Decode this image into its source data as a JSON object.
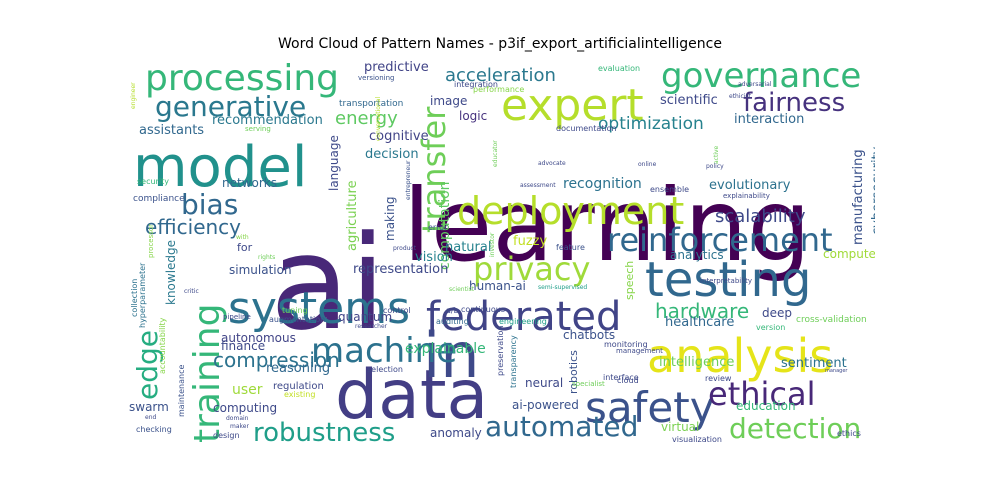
{
  "chart_data": {
    "type": "wordcloud",
    "title": "Word Cloud of Pattern Names - p3if_export_artificialintelligence",
    "background": "#ffffff",
    "colormap": "viridis",
    "words": [
      {
        "text": "learning",
        "weight": 1.0,
        "color": "#440154"
      },
      {
        "text": "ai",
        "weight": 0.97,
        "color": "#482878"
      },
      {
        "text": "data",
        "weight": 0.68,
        "color": "#433e85"
      },
      {
        "text": "in",
        "weight": 0.62,
        "color": "#3e4989"
      },
      {
        "text": "model",
        "weight": 0.58,
        "color": "#21918c"
      },
      {
        "text": "testing",
        "weight": 0.5,
        "color": "#31688e"
      },
      {
        "text": "analysis",
        "weight": 0.5,
        "color": "#e5e419"
      },
      {
        "text": "systems",
        "weight": 0.48,
        "color": "#2c728e"
      },
      {
        "text": "expert",
        "weight": 0.46,
        "color": "#b5de2b"
      },
      {
        "text": "safety",
        "weight": 0.45,
        "color": "#3b528b"
      },
      {
        "text": "federated",
        "weight": 0.43,
        "color": "#414487"
      },
      {
        "text": "deployment",
        "weight": 0.42,
        "color": "#b5de2b"
      },
      {
        "text": "processing",
        "weight": 0.41,
        "color": "#35b779"
      },
      {
        "text": "governance",
        "weight": 0.4,
        "color": "#35b779"
      },
      {
        "text": "training",
        "weight": 0.4,
        "color": "#35b779"
      },
      {
        "text": "machine",
        "weight": 0.38,
        "color": "#2c728e"
      },
      {
        "text": "reinforcement",
        "weight": 0.37,
        "color": "#31688e"
      },
      {
        "text": "transfer",
        "weight": 0.36,
        "color": "#6ece58"
      },
      {
        "text": "ethical",
        "weight": 0.36,
        "color": "#482878"
      },
      {
        "text": "privacy",
        "weight": 0.35,
        "color": "#9fda3a"
      },
      {
        "text": "generative",
        "weight": 0.33,
        "color": "#2a788e"
      },
      {
        "text": "edge",
        "weight": 0.33,
        "color": "#26ad81"
      },
      {
        "text": "automated",
        "weight": 0.32,
        "color": "#31688e"
      },
      {
        "text": "detection",
        "weight": 0.31,
        "color": "#6ece58"
      },
      {
        "text": "robustness",
        "weight": 0.3,
        "color": "#1f9e89"
      },
      {
        "text": "fairness",
        "weight": 0.29,
        "color": "#46327e"
      },
      {
        "text": "bias",
        "weight": 0.29,
        "color": "#31688e"
      },
      {
        "text": "compression",
        "weight": 0.25,
        "color": "#2c728e"
      },
      {
        "text": "hardware",
        "weight": 0.24,
        "color": "#35b779"
      },
      {
        "text": "efficiency",
        "weight": 0.24,
        "color": "#31688e"
      },
      {
        "text": "acceleration",
        "weight": 0.23,
        "color": "#2a788e"
      },
      {
        "text": "scalability",
        "weight": 0.22,
        "color": "#3e4989"
      },
      {
        "text": "optimization",
        "weight": 0.21,
        "color": "#26828e"
      },
      {
        "text": "energy",
        "weight": 0.21,
        "color": "#5ec962"
      },
      {
        "text": "computation",
        "weight": 0.16,
        "color": "#5ec962"
      },
      {
        "text": "fuzzy",
        "weight": 0.16,
        "color": "#c2df23"
      },
      {
        "text": "robotics",
        "weight": 0.15,
        "color": "#3b528b"
      },
      {
        "text": "recognition",
        "weight": 0.17,
        "color": "#2c728e"
      },
      {
        "text": "explainable",
        "weight": 0.16,
        "color": "#35b779"
      },
      {
        "text": "natural",
        "weight": 0.15,
        "color": "#26828e"
      },
      {
        "text": "vision",
        "weight": 0.15,
        "color": "#26828e"
      },
      {
        "text": "knowledge",
        "weight": 0.15,
        "color": "#2a788e"
      },
      {
        "text": "representation",
        "weight": 0.15,
        "color": "#3e4989"
      },
      {
        "text": "evolutionary",
        "weight": 0.15,
        "color": "#2c728e"
      },
      {
        "text": "manufacturing",
        "weight": 0.15,
        "color": "#3b528b"
      },
      {
        "text": "cybersecurity",
        "weight": 0.14,
        "color": "#31688e"
      },
      {
        "text": "intelligence",
        "weight": 0.15,
        "color": "#6ece58"
      },
      {
        "text": "healthcare",
        "weight": 0.15,
        "color": "#31688e"
      },
      {
        "text": "sentiment",
        "weight": 0.15,
        "color": "#2c728e"
      },
      {
        "text": "agriculture",
        "weight": 0.14,
        "color": "#7ad151"
      },
      {
        "text": "language",
        "weight": 0.14,
        "color": "#3e4989"
      },
      {
        "text": "making",
        "weight": 0.14,
        "color": "#3b528b"
      },
      {
        "text": "decision",
        "weight": 0.14,
        "color": "#2a788e"
      },
      {
        "text": "cognitive",
        "weight": 0.14,
        "color": "#414487"
      },
      {
        "text": "recommendation",
        "weight": 0.13,
        "color": "#2a788e"
      },
      {
        "text": "assistants",
        "weight": 0.13,
        "color": "#31688e"
      },
      {
        "text": "scientific",
        "weight": 0.13,
        "color": "#3e4989"
      },
      {
        "text": "interaction",
        "weight": 0.13,
        "color": "#31688e"
      },
      {
        "text": "predictive",
        "weight": 0.13,
        "color": "#414487"
      },
      {
        "text": "logic",
        "weight": 0.12,
        "color": "#46327e"
      },
      {
        "text": "image",
        "weight": 0.11,
        "color": "#3e4989"
      },
      {
        "text": "networks",
        "weight": 0.12,
        "color": "#31688e"
      },
      {
        "text": "simulation",
        "weight": 0.12,
        "color": "#3b528b"
      },
      {
        "text": "autonomous",
        "weight": 0.12,
        "color": "#414487"
      },
      {
        "text": "finance",
        "weight": 0.12,
        "color": "#3e4989"
      },
      {
        "text": "reasoning",
        "weight": 0.13,
        "color": "#31688e"
      },
      {
        "text": "user",
        "weight": 0.14,
        "color": "#9fda3a"
      },
      {
        "text": "swarm",
        "weight": 0.13,
        "color": "#3b528b"
      },
      {
        "text": "computing",
        "weight": 0.12,
        "color": "#3e4989"
      },
      {
        "text": "quantum",
        "weight": 0.11,
        "color": "#414487"
      },
      {
        "text": "human-ai",
        "weight": 0.12,
        "color": "#3b528b"
      },
      {
        "text": "analytics",
        "weight": 0.12,
        "color": "#2c728e"
      },
      {
        "text": "computer",
        "weight": 0.12,
        "color": "#a0da39"
      },
      {
        "text": "deep",
        "weight": 0.12,
        "color": "#3e4989"
      },
      {
        "text": "discovery",
        "weight": 0.12,
        "color": "#2a788e"
      },
      {
        "text": "chatbots",
        "weight": 0.11,
        "color": "#3b528b"
      },
      {
        "text": "neural",
        "weight": 0.11,
        "color": "#3e4989"
      },
      {
        "text": "ai-powered",
        "weight": 0.11,
        "color": "#3b528b"
      },
      {
        "text": "anomaly",
        "weight": 0.11,
        "color": "#3e4989"
      },
      {
        "text": "virtual",
        "weight": 0.11,
        "color": "#7ad151"
      },
      {
        "text": "education",
        "weight": 0.11,
        "color": "#35b779"
      },
      {
        "text": "speech",
        "weight": 0.1,
        "color": "#86d549"
      },
      {
        "text": "for",
        "weight": 0.1,
        "color": "#3e4989"
      },
      {
        "text": "regulation",
        "weight": 0.09,
        "color": "#3e4989"
      },
      {
        "text": "compliance",
        "weight": 0.08,
        "color": "#3b528b"
      },
      {
        "text": "security",
        "weight": 0.07,
        "color": "#35b779"
      },
      {
        "text": "serving",
        "weight": 0.06,
        "color": "#6ece58"
      },
      {
        "text": "transportation",
        "weight": 0.08,
        "color": "#31688e"
      },
      {
        "text": "performance",
        "weight": 0.08,
        "color": "#86d549"
      },
      {
        "text": "integration",
        "weight": 0.08,
        "color": "#3e4989"
      },
      {
        "text": "versioning",
        "weight": 0.07,
        "color": "#3b528b"
      },
      {
        "text": "evaluation",
        "weight": 0.08,
        "color": "#35b779"
      },
      {
        "text": "documentation",
        "weight": 0.07,
        "color": "#3e4989"
      },
      {
        "text": "auditing",
        "weight": 0.07,
        "color": "#31688e"
      },
      {
        "text": "continuous",
        "weight": 0.07,
        "color": "#3e4989"
      },
      {
        "text": "error",
        "weight": 0.07,
        "color": "#3b528b"
      },
      {
        "text": "ensemble",
        "weight": 0.07,
        "color": "#3e4989"
      },
      {
        "text": "feature",
        "weight": 0.07,
        "color": "#3b528b"
      },
      {
        "text": "explainability",
        "weight": 0.07,
        "color": "#3e4989"
      },
      {
        "text": "interpretability",
        "weight": 0.06,
        "color": "#3e4989"
      },
      {
        "text": "cross-validation",
        "weight": 0.08,
        "color": "#6ece58"
      },
      {
        "text": "version",
        "weight": 0.07,
        "color": "#35b779"
      },
      {
        "text": "management",
        "weight": 0.06,
        "color": "#3e4989"
      },
      {
        "text": "monitoring",
        "weight": 0.07,
        "color": "#3e4989"
      },
      {
        "text": "preservation",
        "weight": 0.07,
        "color": "#3e4989"
      },
      {
        "text": "transparency",
        "weight": 0.07,
        "color": "#2c728e"
      },
      {
        "text": "engineering",
        "weight": 0.07,
        "color": "#1f9e89"
      },
      {
        "text": "semi-supervised",
        "weight": 0.06,
        "color": "#1f9e89"
      },
      {
        "text": "scientist",
        "weight": 0.06,
        "color": "#6ece58"
      },
      {
        "text": "a/b",
        "weight": 0.07,
        "color": "#3e4989"
      },
      {
        "text": "control",
        "weight": 0.07,
        "color": "#3e4989"
      },
      {
        "text": "tuning",
        "weight": 0.07,
        "color": "#6ece58"
      },
      {
        "text": "augmentation",
        "weight": 0.07,
        "color": "#3b528b"
      },
      {
        "text": "pipeline",
        "weight": 0.06,
        "color": "#3e4989"
      },
      {
        "text": "researcher",
        "weight": 0.06,
        "color": "#3e4989"
      },
      {
        "text": "critic",
        "weight": 0.06,
        "color": "#3e4989"
      },
      {
        "text": "selection",
        "weight": 0.07,
        "color": "#3e4989"
      },
      {
        "text": "existing",
        "weight": 0.07,
        "color": "#c2df23"
      },
      {
        "text": "interface",
        "weight": 0.07,
        "color": "#3e4989"
      },
      {
        "text": "cloud",
        "weight": 0.07,
        "color": "#3e4989"
      },
      {
        "text": "specialist",
        "weight": 0.06,
        "color": "#6ece58"
      },
      {
        "text": "review",
        "weight": 0.07,
        "color": "#3e4989"
      },
      {
        "text": "ethics",
        "weight": 0.07,
        "color": "#3e4989"
      },
      {
        "text": "algorithm",
        "weight": 0.07,
        "color": "#3b528b"
      },
      {
        "text": "visualization",
        "weight": 0.07,
        "color": "#3e4989"
      },
      {
        "text": "checking",
        "weight": 0.07,
        "color": "#3b528b"
      },
      {
        "text": "design",
        "weight": 0.07,
        "color": "#3e4989"
      },
      {
        "text": "maker",
        "weight": 0.06,
        "color": "#3e4989"
      },
      {
        "text": "domain",
        "weight": 0.06,
        "color": "#3e4989"
      },
      {
        "text": "end",
        "weight": 0.06,
        "color": "#3e4989"
      },
      {
        "text": "maintenance",
        "weight": 0.07,
        "color": "#3b528b"
      },
      {
        "text": "accountability",
        "weight": 0.07,
        "color": "#86d549"
      },
      {
        "text": "collection",
        "weight": 0.07,
        "color": "#2c728e"
      },
      {
        "text": "hyperparameter",
        "weight": 0.07,
        "color": "#2c728e"
      },
      {
        "text": "processor",
        "weight": 0.06,
        "color": "#86d549"
      },
      {
        "text": "engineer",
        "weight": 0.06,
        "color": "#b5de2b"
      },
      {
        "text": "with",
        "weight": 0.06,
        "color": "#86d549"
      },
      {
        "text": "rights",
        "weight": 0.06,
        "color": "#6ece58"
      },
      {
        "text": "product",
        "weight": 0.06,
        "color": "#3e4989"
      },
      {
        "text": "investor",
        "weight": 0.06,
        "color": "#6ece58"
      },
      {
        "text": "entrepreneur",
        "weight": 0.06,
        "color": "#3b528b"
      },
      {
        "text": "educator",
        "weight": 0.06,
        "color": "#6ece58"
      },
      {
        "text": "advocate",
        "weight": 0.06,
        "color": "#3e4989"
      },
      {
        "text": "assessment",
        "weight": 0.06,
        "color": "#3e4989"
      },
      {
        "text": "online",
        "weight": 0.06,
        "color": "#3e4989"
      },
      {
        "text": "policy",
        "weight": 0.06,
        "color": "#3e4989"
      },
      {
        "text": "active",
        "weight": 0.06,
        "color": "#6ece58"
      },
      {
        "text": "adversarial",
        "weight": 0.06,
        "color": "#3e4989"
      },
      {
        "text": "ethicist",
        "weight": 0.06,
        "color": "#3e4989"
      },
      {
        "text": "manager",
        "weight": 0.05,
        "color": "#3e4989"
      },
      {
        "text": "conversational",
        "weight": 0.05,
        "color": "#b5de2b"
      }
    ]
  }
}
